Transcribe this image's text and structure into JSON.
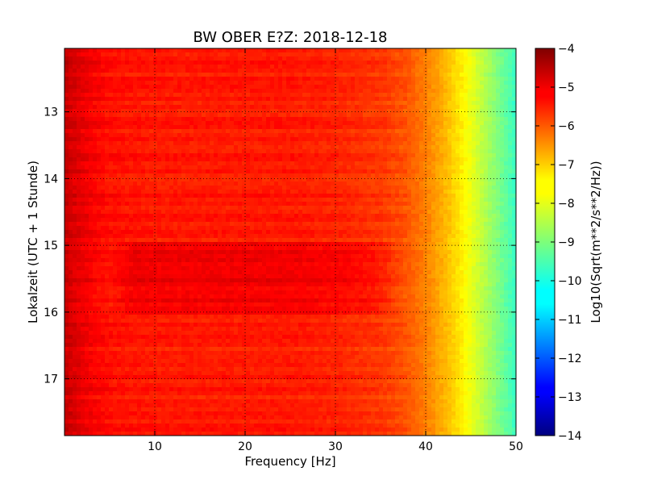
{
  "chart_data": {
    "type": "heatmap",
    "title": "BW OBER E?Z: 2018-12-18",
    "xlabel": "Frequency [Hz]",
    "ylabel": "Lokalzeit (UTC + 1 Stunde)",
    "xlim": [
      0,
      50
    ],
    "ylim": [
      12.05,
      17.85
    ],
    "y_inverted": true,
    "xticks": [
      10,
      20,
      30,
      40,
      50
    ],
    "xtick_labels": [
      "10",
      "20",
      "30",
      "40",
      "50"
    ],
    "yticks": [
      13,
      14,
      15,
      16,
      17
    ],
    "ytick_labels": [
      "13",
      "14",
      "15",
      "16",
      "17"
    ],
    "grid": true,
    "grid_style": "dotted",
    "colormap": "jet",
    "colorbar": {
      "label": "Log10(Sqrt(m**2/s**2/Hz))",
      "range": [
        -14,
        -4
      ],
      "ticks": [
        -4,
        -5,
        -6,
        -7,
        -8,
        -9,
        -10,
        -11,
        -12,
        -13,
        -14
      ],
      "tick_labels": [
        "−4",
        "−5",
        "−6",
        "−7",
        "−8",
        "−9",
        "−10",
        "−11",
        "−12",
        "−13",
        "−14"
      ]
    },
    "frequency_profile": {
      "frequency": [
        0,
        1,
        3,
        5,
        10,
        15,
        20,
        25,
        30,
        35,
        38,
        40,
        42,
        44,
        46,
        48,
        50
      ],
      "value": [
        -4.7,
        -4.9,
        -5.2,
        -5.4,
        -5.5,
        -5.5,
        -5.5,
        -5.5,
        -5.6,
        -5.8,
        -6.1,
        -6.5,
        -7.0,
        -7.6,
        -8.3,
        -9.0,
        -9.7
      ]
    },
    "high_energy_period": {
      "time_start": 14.98,
      "time_end": 16.02,
      "freq_range": [
        5,
        38
      ],
      "offset": 0.4
    }
  }
}
